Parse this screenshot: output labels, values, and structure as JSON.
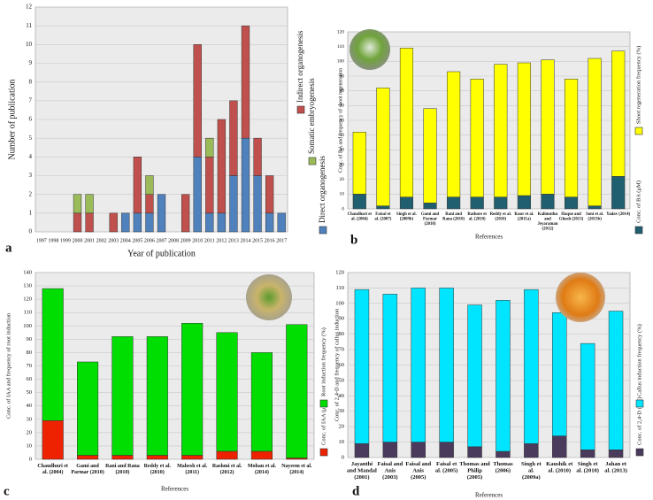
{
  "chart_data": [
    {
      "type": "bar",
      "stacked": true,
      "panel_label": "a",
      "x_label": "Year of publication",
      "y_label": "Number of publication",
      "categories": [
        "1997",
        "1998",
        "1999",
        "2000",
        "2001",
        "2002",
        "2003",
        "2004",
        "2005",
        "2006",
        "2007",
        "2008",
        "2009",
        "2010",
        "2011",
        "2012",
        "2013",
        "2014",
        "2015",
        "2016",
        "2017"
      ],
      "series": [
        {
          "name": "Direct organogenesis",
          "color": "#4f81bd",
          "values": [
            0,
            0,
            0,
            0,
            0,
            0,
            0,
            1,
            1,
            1,
            2,
            0,
            0,
            4,
            1,
            1,
            3,
            5,
            3,
            1,
            1
          ]
        },
        {
          "name": "Indirect organogenesis",
          "color": "#c0504d",
          "values": [
            0,
            0,
            0,
            1,
            1,
            0,
            1,
            0,
            3,
            1,
            0,
            0,
            2,
            6,
            3,
            5,
            4,
            6,
            2,
            2,
            0
          ]
        },
        {
          "name": "Somatic embryogenesis",
          "color": "#9bbb59",
          "values": [
            0,
            0,
            0,
            1,
            1,
            0,
            0,
            0,
            0,
            1,
            0,
            0,
            0,
            0,
            1,
            0,
            0,
            0,
            0,
            0,
            0
          ]
        }
      ],
      "ylim": [
        0,
        12
      ],
      "yticks": [
        0,
        1,
        2,
        3,
        4,
        5,
        6,
        7,
        8,
        9,
        10,
        11,
        12
      ],
      "grid": true
    },
    {
      "type": "bar",
      "stacked": true,
      "panel_label": "b",
      "x_label": "References",
      "y_label": "Conc. of BA and frequency of shoot regeneration",
      "categories": [
        "Chaudhari et al. (2004)",
        "Faisal et al. (2007)",
        "Singh et al. (2009b)",
        "Gami and Parmar (2010)",
        "Rani and Rana (2010)",
        "Rathore et al. (2010)",
        "Reddy et al. (2010)",
        "Kaur et al. (2011a)",
        "Kalimuthu and Jeyaraman (2012)",
        "Haque and Ghosh (2013)",
        "Soni et al. (2013b)",
        "Yadav (2014)"
      ],
      "series": [
        {
          "name": "Conc. of BA (μM)",
          "color": "#1f5f6f",
          "values": [
            10,
            2,
            8,
            4,
            8,
            8,
            8,
            9,
            10,
            8,
            2,
            22
          ]
        },
        {
          "name": "Shoot regeneration frequency (%)",
          "color": "#ffff00",
          "values": [
            42,
            80,
            101,
            64,
            85,
            80,
            90,
            90,
            91,
            80,
            100,
            85
          ]
        }
      ],
      "ylim": [
        0,
        120
      ],
      "yticks": [
        0,
        10,
        20,
        30,
        40,
        50,
        60,
        70,
        80,
        90,
        100,
        110,
        120
      ],
      "grid": true
    },
    {
      "type": "bar",
      "stacked": true,
      "panel_label": "c",
      "x_label": "References",
      "y_label": "Conc. of IAA and frequency of root induction",
      "categories": [
        "Chaudhuri et al. (2004)",
        "Gami and Parmar (2010)",
        "Rani and Rana (2010)",
        "Reddy et al. (2010)",
        "Mahesh et al. (2011)",
        "Rashmi et al. (2012)",
        "Mohan et al. (2014)",
        "Nayeem et al. (2014)"
      ],
      "series": [
        {
          "name": "Conc. of IAA (μM)",
          "color": "#ee2200",
          "values": [
            29,
            3,
            3,
            3,
            3,
            6,
            6,
            1
          ]
        },
        {
          "name": "Root induction frequency (%)",
          "color": "#00dd00",
          "values": [
            99,
            70,
            89,
            89,
            99,
            89,
            74,
            100
          ]
        }
      ],
      "ylim": [
        0,
        140
      ],
      "yticks": [
        0,
        10,
        20,
        30,
        40,
        50,
        60,
        70,
        80,
        90,
        100,
        110,
        120,
        130,
        140
      ],
      "grid": true
    },
    {
      "type": "bar",
      "stacked": true,
      "panel_label": "d",
      "x_label": "References",
      "y_label": "Conc. of 2,4-D and frequency of callus induction",
      "categories": [
        "Jayanthi and Mandal (2001)",
        "Faisal and Anis (2003)",
        "Faisal and Anis (2005)",
        "Faisal et al. (2005)",
        "Thomas and Philip (2005)",
        "Thomas (2006)",
        "Singh et al. (2009a)",
        "Kaushik et al. (2010)",
        "Singh et al. (2010)",
        "Jahan et al. (2013)"
      ],
      "series": [
        {
          "name": "Conc. of 2,4-D (μM)",
          "color": "#4a3a5c",
          "values": [
            9,
            10,
            10,
            10,
            7,
            4,
            9,
            14,
            5,
            5
          ]
        },
        {
          "name": "Callus induction frequency (%)",
          "color": "#00e5ff",
          "values": [
            100,
            96,
            100,
            100,
            92,
            98,
            100,
            80,
            69,
            90
          ]
        }
      ],
      "ylim": [
        0,
        120
      ],
      "yticks": [
        0,
        10,
        20,
        30,
        40,
        50,
        60,
        70,
        80,
        90,
        100,
        110,
        120
      ],
      "grid": true
    }
  ]
}
